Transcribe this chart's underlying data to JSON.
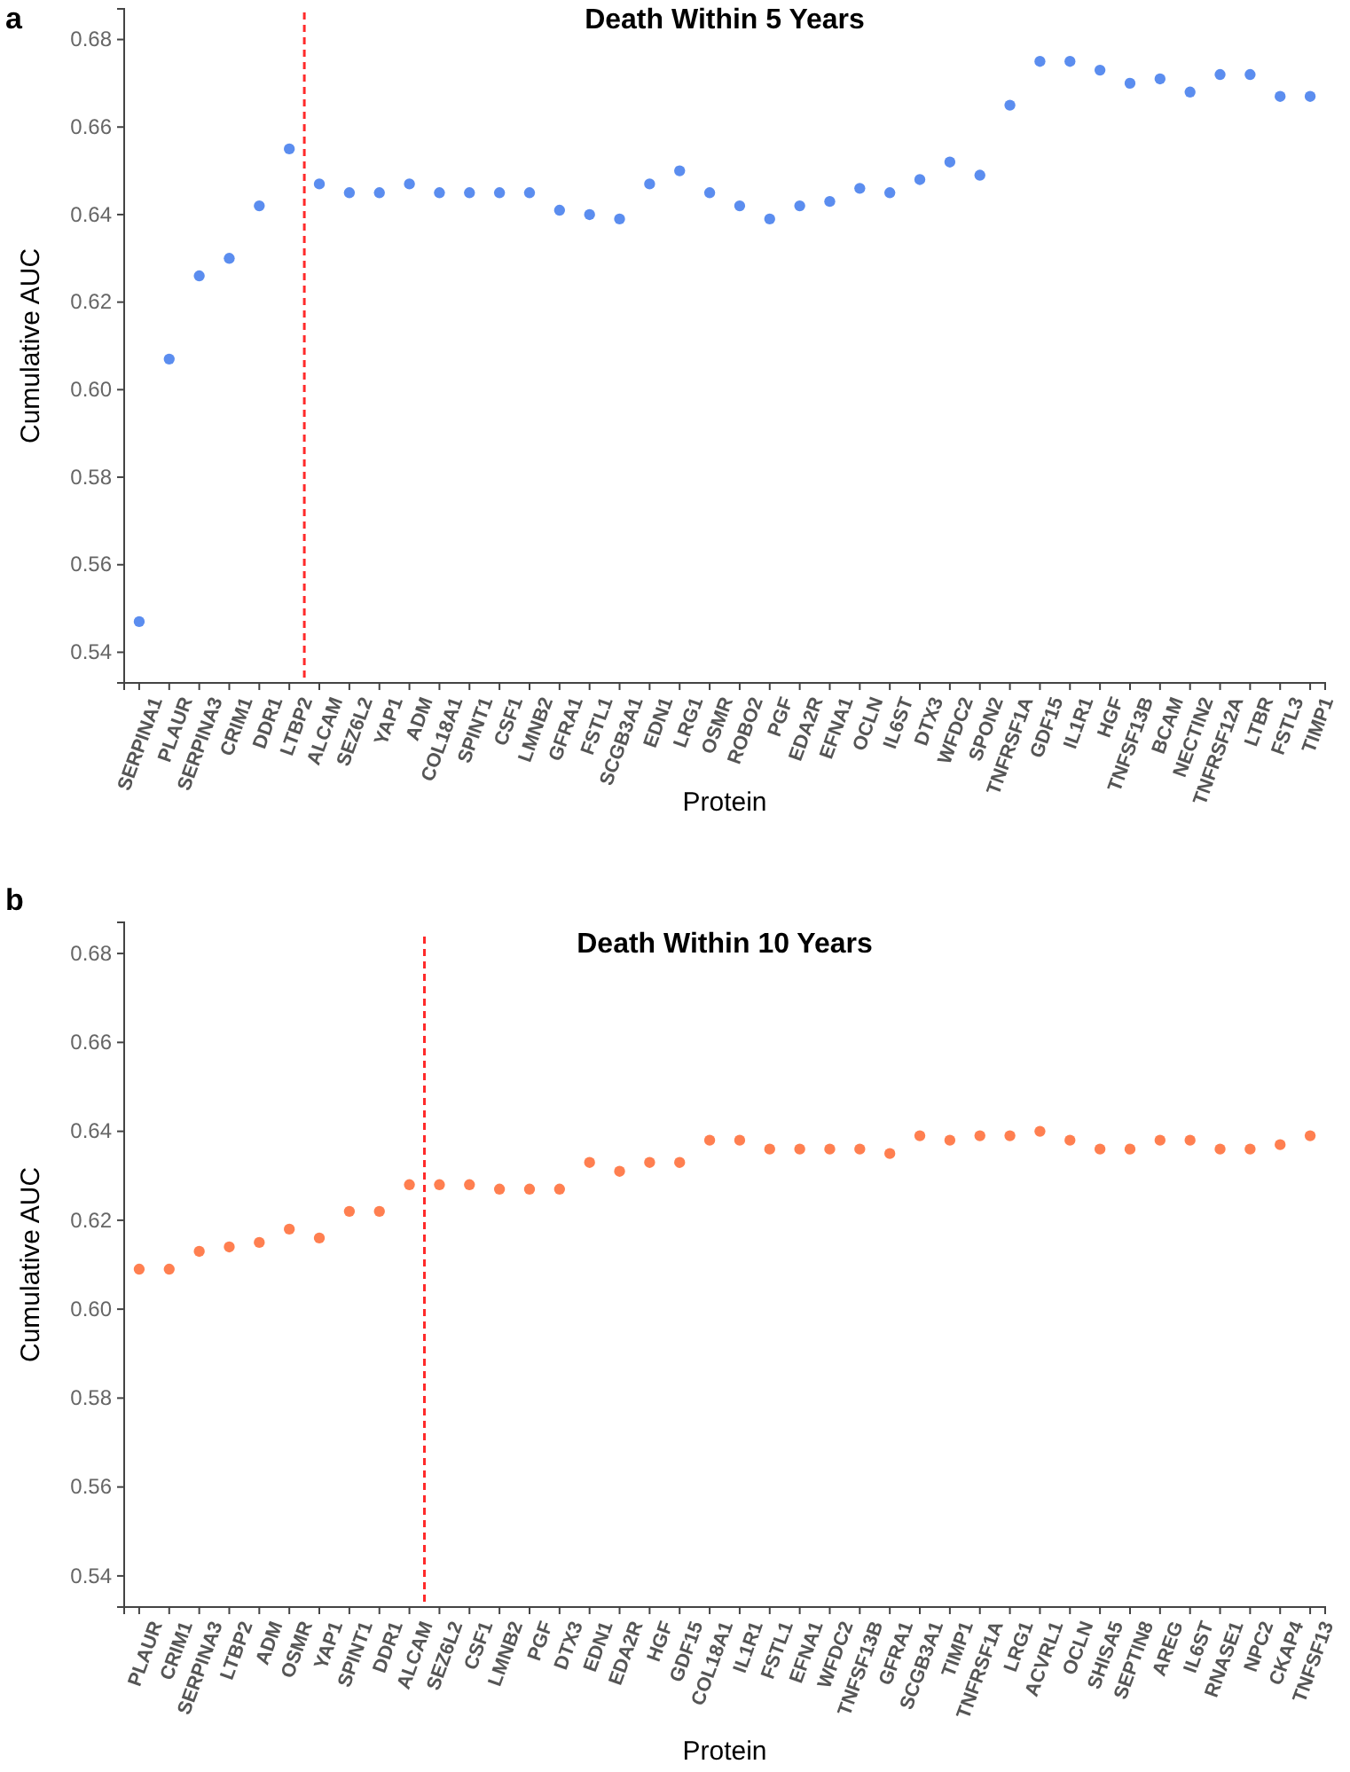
{
  "chart_data": [
    {
      "type": "scatter",
      "title": "Death Within 5 Years",
      "xlabel": "Protein",
      "ylabel": "Cumulative AUC",
      "annotations": [
        "a"
      ],
      "categories": [
        "SERPINA1",
        "PLAUR",
        "SERPINA3",
        "CRIM1",
        "DDR1",
        "LTBP2",
        "ALCAM",
        "SEZ6L2",
        "YAP1",
        "ADM",
        "COL18A1",
        "SPINT1",
        "CSF1",
        "LMNB2",
        "GFRA1",
        "FSTL1",
        "SCGB3A1",
        "EDN1",
        "LRG1",
        "OSMR",
        "ROBO2",
        "PGF",
        "EDA2R",
        "EFNA1",
        "OCLN",
        "IL6ST",
        "DTX3",
        "WFDC2",
        "SPON2",
        "TNFRSF1A",
        "GDF15",
        "IL1R1",
        "HGF",
        "TNFSF13B",
        "BCAM",
        "NECTIN2",
        "TNFRSF12A",
        "LTBR",
        "FSTL3",
        "TIMP1"
      ],
      "series": [
        {
          "color": "#5b8def",
          "values": [
            0.547,
            0.607,
            0.626,
            0.63,
            0.642,
            0.655,
            0.647,
            0.645,
            0.645,
            0.647,
            0.645,
            0.645,
            0.645,
            0.645,
            0.641,
            0.64,
            0.639,
            0.647,
            0.65,
            0.645,
            0.642,
            0.639,
            0.642,
            0.643,
            0.646,
            0.645,
            0.648,
            0.652,
            0.649,
            0.665,
            0.675,
            0.675,
            0.673,
            0.67,
            0.671,
            0.668,
            0.672,
            0.672,
            0.667,
            0.667
          ]
        }
      ],
      "ylim": [
        0.533,
        0.687
      ],
      "yticks": [
        {
          "value": 0.54,
          "label": "0.54"
        },
        {
          "value": 0.56,
          "label": "0.56"
        },
        {
          "value": 0.58,
          "label": "0.58"
        },
        {
          "value": 0.6,
          "label": "0.60"
        },
        {
          "value": 0.62,
          "label": "0.62"
        },
        {
          "value": 0.64,
          "label": "0.64"
        },
        {
          "value": 0.66,
          "label": "0.66"
        },
        {
          "value": 0.68,
          "label": "0.68"
        }
      ],
      "grid": false,
      "marker": "circle",
      "ref_lines": [
        {
          "axis": "x",
          "value": "LTBP2",
          "color": "#ff2a2a",
          "line_style": "dashed"
        }
      ]
    },
    {
      "type": "scatter",
      "title": "Death Within 10 Years",
      "xlabel": "Protein",
      "ylabel": "Cumulative AUC",
      "annotations": [
        "b"
      ],
      "categories": [
        "PLAUR",
        "CRIM1",
        "SERPINA3",
        "LTBP2",
        "ADM",
        "OSMR",
        "YAP1",
        "SPINT1",
        "DDR1",
        "ALCAM",
        "SEZ6L2",
        "CSF1",
        "LMNB2",
        "PGF",
        "DTX3",
        "EDN1",
        "EDA2R",
        "HGF",
        "GDF15",
        "COL18A1",
        "IL1R1",
        "FSTL1",
        "EFNA1",
        "WFDC2",
        "TNFSF13B",
        "GFRA1",
        "SCGB3A1",
        "TIMP1",
        "TNFRSF1A",
        "LRG1",
        "ACVRL1",
        "OCLN",
        "SHISA5",
        "SEPTIN8",
        "AREG",
        "IL6ST",
        "RNASE1",
        "NPC2",
        "CKAP4",
        "TNFSF13"
      ],
      "series": [
        {
          "color": "#ff7f50",
          "values": [
            0.609,
            0.609,
            0.613,
            0.614,
            0.615,
            0.618,
            0.616,
            0.622,
            0.622,
            0.628,
            0.628,
            0.628,
            0.627,
            0.627,
            0.627,
            0.633,
            0.631,
            0.633,
            0.633,
            0.638,
            0.638,
            0.636,
            0.636,
            0.636,
            0.636,
            0.635,
            0.639,
            0.638,
            0.639,
            0.639,
            0.64,
            0.638,
            0.636,
            0.636,
            0.638,
            0.638,
            0.636,
            0.636,
            0.637,
            0.639
          ]
        }
      ],
      "ylim": [
        0.533,
        0.687
      ],
      "yticks": [
        {
          "value": 0.54,
          "label": "0.54"
        },
        {
          "value": 0.56,
          "label": "0.56"
        },
        {
          "value": 0.58,
          "label": "0.58"
        },
        {
          "value": 0.6,
          "label": "0.60"
        },
        {
          "value": 0.62,
          "label": "0.62"
        },
        {
          "value": 0.64,
          "label": "0.64"
        },
        {
          "value": 0.66,
          "label": "0.66"
        },
        {
          "value": 0.68,
          "label": "0.68"
        }
      ],
      "grid": false,
      "marker": "circle",
      "ref_lines": [
        {
          "axis": "x",
          "value": "ALCAM",
          "color": "#ff2a2a",
          "line_style": "dashed"
        }
      ]
    }
  ]
}
